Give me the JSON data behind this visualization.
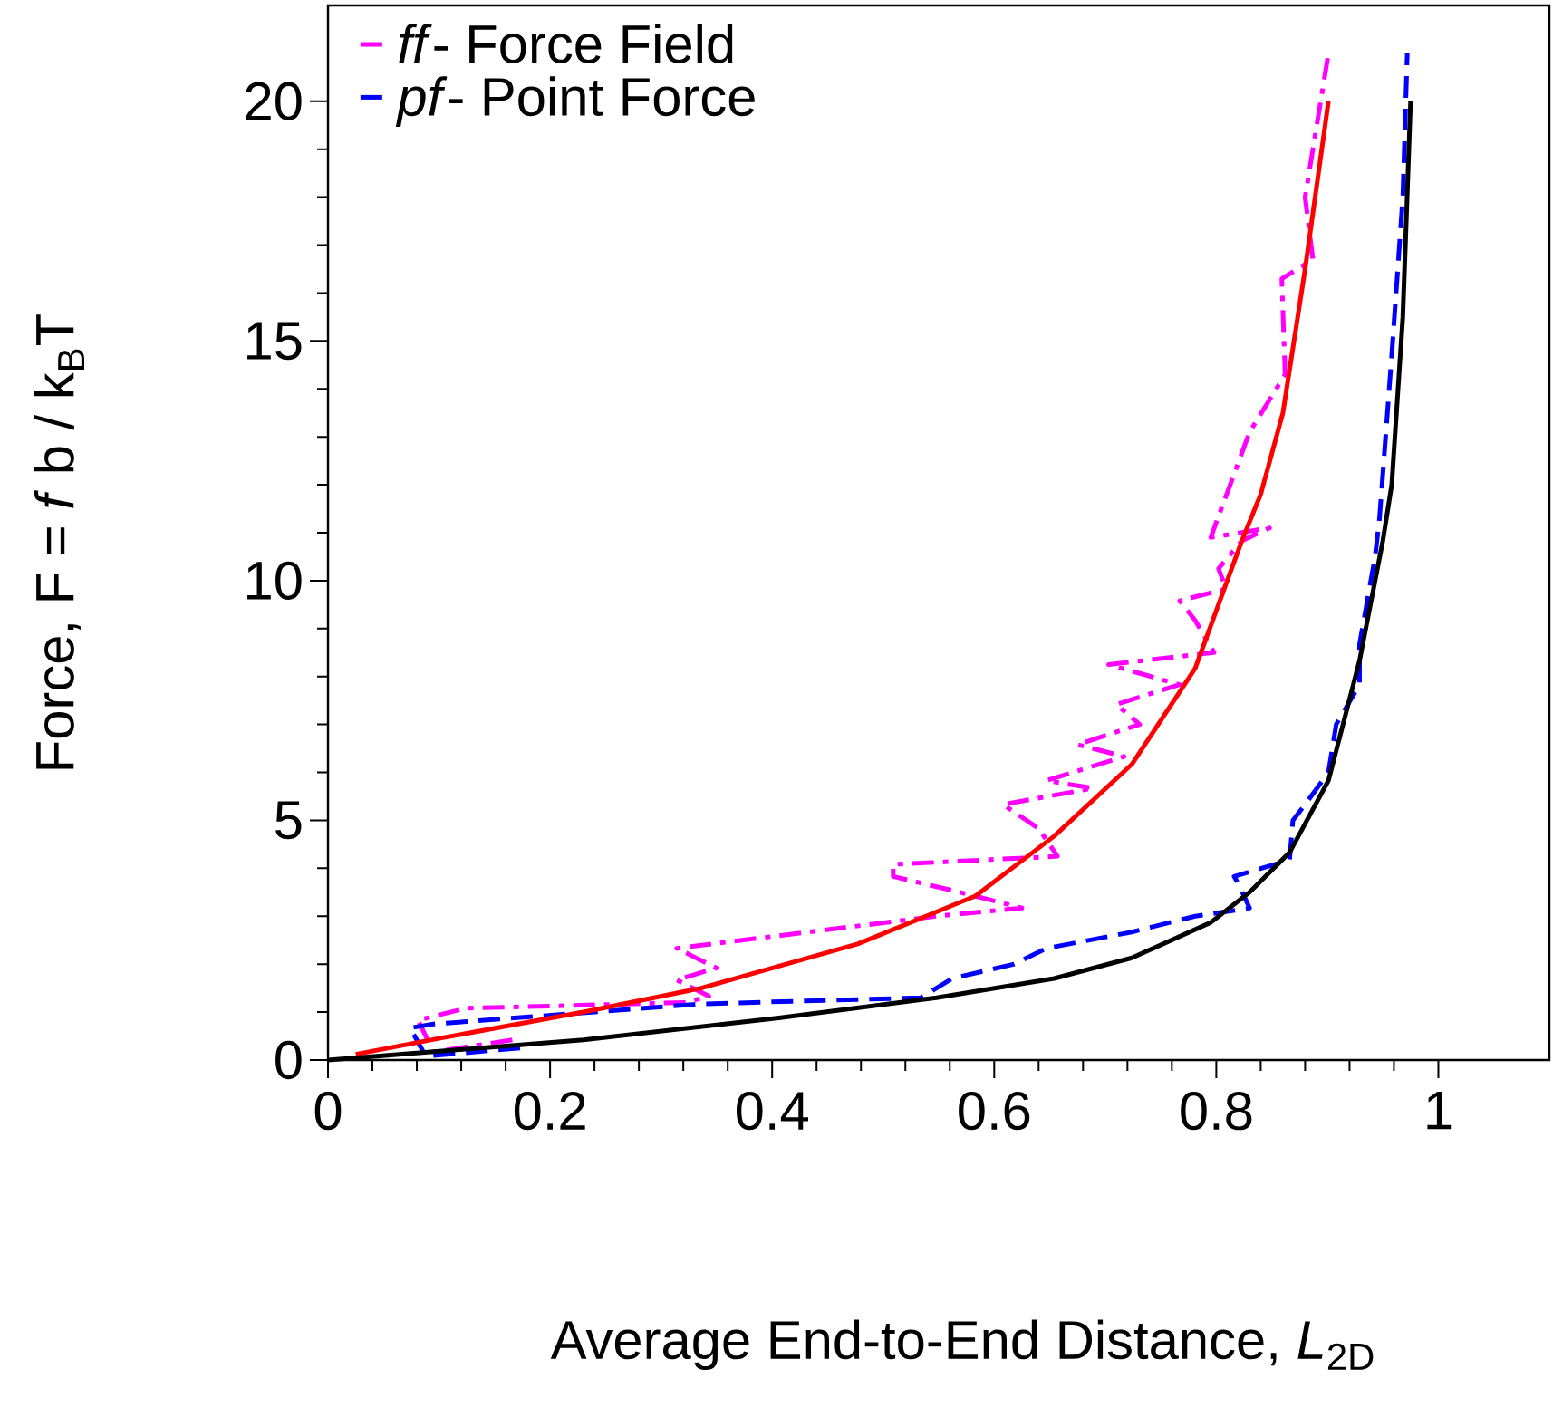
{
  "chart_data": {
    "type": "line",
    "xlabel": "Average End-to-End Distance, *L*$_{2D}$",
    "ylabel": "Force, F = *f* b / k$_{B}$T",
    "xlim": [
      0,
      1.1
    ],
    "ylim": [
      0,
      22
    ],
    "xticks": [
      0,
      0.2,
      0.4,
      0.6,
      0.8,
      1
    ],
    "yticks": [
      0,
      5,
      10,
      15,
      20
    ],
    "legend": "top left",
    "series": [
      {
        "name": "*ff*- Force Field",
        "color": "#ff00ff",
        "line_style": "dashdot",
        "x": [
          0.166,
          0.095,
          0.081,
          0.124,
          0.322,
          0.343,
          0.314,
          0.35,
          0.314,
          0.548,
          0.625,
          0.569,
          0.509,
          0.509,
          0.657,
          0.64,
          0.608,
          0.689,
          0.647,
          0.717,
          0.675,
          0.731,
          0.71,
          0.767,
          0.703,
          0.798,
          0.781,
          0.767,
          0.809,
          0.802,
          0.823,
          0.848,
          0.795,
          0.83,
          0.862,
          0.859,
          0.887,
          0.88,
          0.901
        ],
        "values": [
          0.42,
          0.17,
          0.83,
          1.08,
          1.2,
          1.33,
          1.67,
          1.92,
          2.33,
          3.0,
          3.17,
          3.5,
          3.83,
          4.08,
          4.25,
          4.83,
          5.33,
          5.67,
          5.83,
          6.33,
          6.58,
          7.0,
          7.42,
          7.83,
          8.25,
          8.5,
          9.17,
          9.58,
          9.83,
          10.25,
          10.83,
          11.1,
          10.9,
          13.1,
          14.3,
          16.3,
          16.7,
          18.0,
          21.0
        ]
      },
      {
        "name": "*pf*- Point Force",
        "color": "#0000ff",
        "line_style": "dashed",
        "x": [
          0.173,
          0.088,
          0.074,
          0.095,
          0.336,
          0.534,
          0.562,
          0.618,
          0.647,
          0.724,
          0.781,
          0.83,
          0.82,
          0.816,
          0.866,
          0.869,
          0.88,
          0.901,
          0.908,
          0.929,
          0.929,
          0.943,
          0.947,
          0.958,
          0.968,
          0.972
        ],
        "values": [
          0.25,
          0.08,
          0.67,
          0.75,
          1.17,
          1.3,
          1.7,
          2.0,
          2.33,
          2.67,
          3.0,
          3.17,
          3.67,
          3.83,
          4.17,
          5.0,
          5.33,
          6.0,
          7.0,
          7.83,
          8.67,
          10.5,
          11.3,
          14.7,
          18.0,
          21.0
        ]
      },
      {
        "color": "#ff0000",
        "line_style": "solid",
        "x": [
          0.025,
          0.1,
          0.23,
          0.336,
          0.477,
          0.583,
          0.654,
          0.724,
          0.781,
          0.823,
          0.84,
          0.86,
          0.88,
          0.901
        ],
        "values": [
          0.12,
          0.45,
          1.0,
          1.5,
          2.42,
          3.42,
          4.67,
          6.17,
          8.17,
          10.83,
          11.8,
          13.5,
          16.5,
          20.0
        ]
      },
      {
        "color": "#000000",
        "line_style": "solid",
        "x": [
          0,
          0.23,
          0.406,
          0.548,
          0.654,
          0.724,
          0.795,
          0.83,
          0.866,
          0.901,
          0.929,
          0.95,
          0.958,
          0.968,
          0.975
        ],
        "values": [
          0,
          0.42,
          0.88,
          1.3,
          1.7,
          2.13,
          2.87,
          3.5,
          4.33,
          5.83,
          8.33,
          10.83,
          12.0,
          15.5,
          20.0
        ]
      }
    ]
  }
}
